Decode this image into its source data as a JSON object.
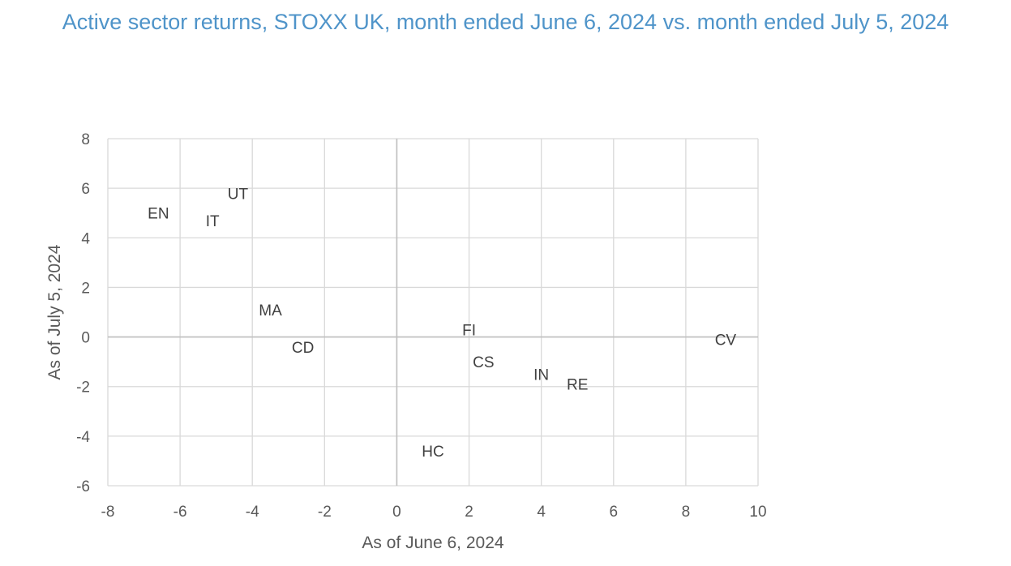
{
  "chart_data": {
    "type": "scatter",
    "title": "Active sector returns, STOXX UK, month ended June 6, 2024 vs. month ended July 5, 2024",
    "xlabel": "As of June 6, 2024",
    "ylabel": "As of July 5, 2024",
    "xlim": [
      -8,
      10
    ],
    "ylim": [
      -6,
      8
    ],
    "x_ticks": [
      "-8",
      "-6",
      "-4",
      "-2",
      "0",
      "2",
      "4",
      "6",
      "8",
      "10"
    ],
    "y_ticks": [
      "8",
      "6",
      "4",
      "2",
      "0",
      "-2",
      "-4",
      "-6"
    ],
    "grid": true,
    "points": [
      {
        "label": "EN",
        "x": -6.6,
        "y": 5.0
      },
      {
        "label": "UT",
        "x": -4.4,
        "y": 5.8
      },
      {
        "label": "IT",
        "x": -5.1,
        "y": 4.7
      },
      {
        "label": "MA",
        "x": -3.5,
        "y": 1.1
      },
      {
        "label": "CD",
        "x": -2.6,
        "y": -0.4
      },
      {
        "label": "FI",
        "x": 2.0,
        "y": 0.3
      },
      {
        "label": "CS",
        "x": 2.4,
        "y": -1.0
      },
      {
        "label": "IN",
        "x": 4.0,
        "y": -1.5
      },
      {
        "label": "RE",
        "x": 5.0,
        "y": -1.9
      },
      {
        "label": "HC",
        "x": 1.0,
        "y": -4.6
      },
      {
        "label": "CV",
        "x": 9.1,
        "y": -0.1
      }
    ],
    "colors": {
      "title": "#4f94c9",
      "grid": "#d9d9d9",
      "text": "#595959",
      "label": "#404040"
    }
  }
}
